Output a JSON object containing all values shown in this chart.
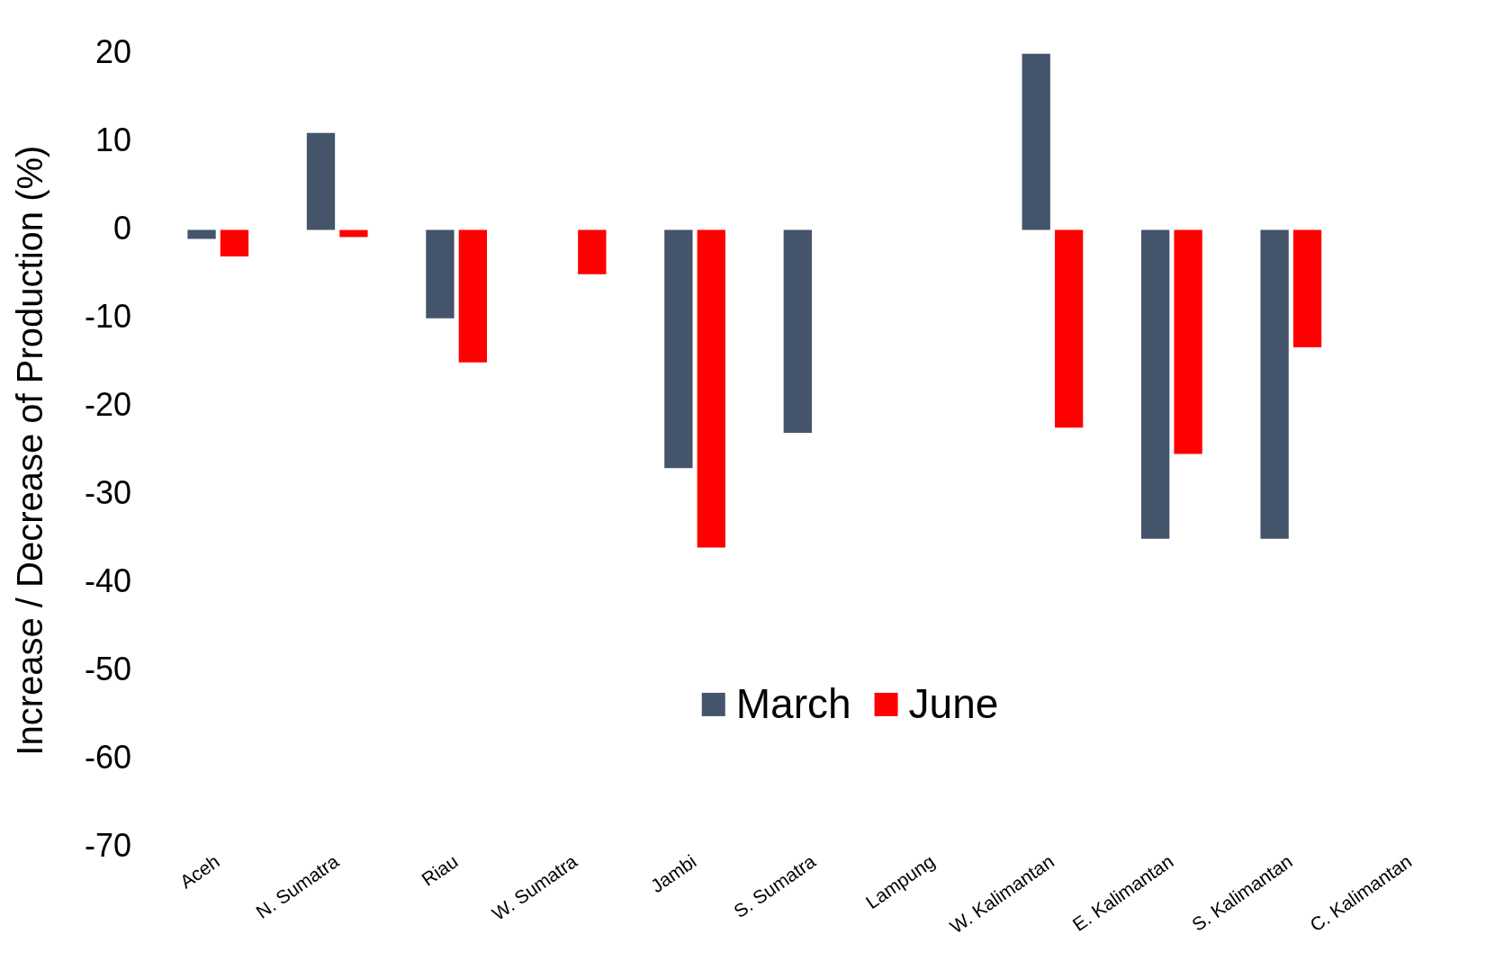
{
  "chart_data": {
    "type": "bar",
    "ylabel": "Increase / Decrease of Production (%)",
    "categories": [
      "Aceh",
      "N. Sumatra",
      "Riau",
      "W. Sumatra",
      "Jambi",
      "S. Sumatra",
      "Lampung",
      "W. Kalimantan",
      "E. Kalimantan",
      "S. Kalimantan",
      "C. Kalimantan"
    ],
    "series": [
      {
        "name": "March",
        "color": "#44546a",
        "values": [
          -1,
          11,
          -10,
          null,
          -27,
          -23,
          null,
          20,
          -35,
          -35,
          null
        ]
      },
      {
        "name": "June",
        "color": "#ff0000",
        "values": [
          -3,
          -0.8,
          -15,
          -5,
          -36,
          null,
          null,
          -22.4,
          -25.4,
          -13.3,
          null
        ]
      }
    ],
    "ylim": [
      -70,
      20
    ],
    "yticks": [
      20,
      10,
      0,
      -10,
      -20,
      -30,
      -40,
      -50,
      -60,
      -70
    ],
    "grid": false,
    "legend": "bottom"
  }
}
